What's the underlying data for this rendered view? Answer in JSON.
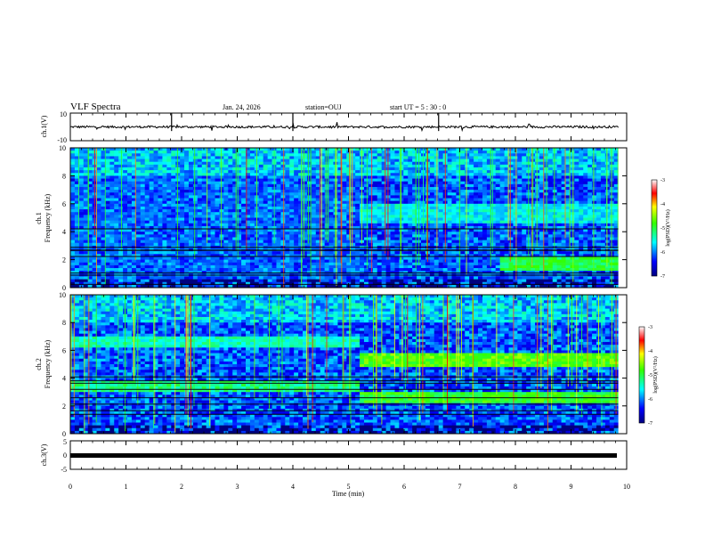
{
  "header": {
    "title": "VLF Spectra",
    "date": "Jan. 24, 2026",
    "station": "station=OUJ",
    "start": "start  UT =  5 : 30 : 0"
  },
  "colors": {
    "background": "#ffffff",
    "axis": "#000000",
    "waveform": "#000000"
  },
  "chart_data": [
    {
      "id": "ch1-waveform",
      "type": "line",
      "ylabel": "ch.1(V)",
      "ylim": [
        -10,
        10
      ],
      "yticks": [
        "10",
        "-10"
      ],
      "baseline": 0,
      "description_series": "noisy waveform centred near 0 V with occasional spikes"
    },
    {
      "id": "ch1-spectrogram",
      "type": "heatmap",
      "ylabel_lines": [
        "ch.1",
        "Frequency (kHz)"
      ],
      "ylim": [
        0,
        10
      ],
      "yticks": [
        "0",
        "2",
        "4",
        "6",
        "8",
        "10"
      ],
      "xlim": [
        0,
        9.85
      ],
      "colorbar": {
        "label": "log(PSD)(V²/Hz)",
        "ticks": [
          "-3",
          "-4",
          "-5",
          "-6",
          "-7"
        ],
        "range": [
          -7,
          -3
        ]
      },
      "features": [
        {
          "t_start": 0,
          "t_end": 5.2,
          "band_kHz": [
            0,
            10
          ],
          "level": -6.3
        },
        {
          "t_start": 5.2,
          "t_end": 9.85,
          "band_kHz": [
            4.6,
            6.0
          ],
          "level": -5.6
        },
        {
          "t_start": 7.7,
          "t_end": 9.85,
          "band_kHz": [
            1.3,
            2.2
          ],
          "level": -5.0
        }
      ]
    },
    {
      "id": "ch2-spectrogram",
      "type": "heatmap",
      "ylabel_lines": [
        "ch.2",
        "Frequency (kHz)"
      ],
      "ylim": [
        0,
        10
      ],
      "yticks": [
        "0",
        "2",
        "4",
        "6",
        "8",
        "10"
      ],
      "xlim": [
        0,
        9.85
      ],
      "colorbar": {
        "label": "log(PSD)(V²/Hz)",
        "ticks": [
          "-3",
          "-4",
          "-5",
          "-6",
          "-7"
        ],
        "range": [
          -7,
          -3
        ]
      },
      "features": [
        {
          "t_start": 0,
          "t_end": 5.2,
          "band_kHz": [
            3.0,
            3.8
          ],
          "level": -5.2
        },
        {
          "t_start": 0,
          "t_end": 5.2,
          "band_kHz": [
            6.3,
            7.0
          ],
          "level": -5.4
        },
        {
          "t_start": 5.2,
          "t_end": 9.85,
          "band_kHz": [
            4.8,
            5.8
          ],
          "level": -4.7
        },
        {
          "t_start": 5.2,
          "t_end": 9.85,
          "band_kHz": [
            2.2,
            3.0
          ],
          "level": -4.9
        }
      ]
    },
    {
      "id": "ch3-waveform",
      "type": "line",
      "ylabel": "ch.3(V)",
      "ylim": [
        -5,
        5
      ],
      "yticks": [
        "5",
        "0",
        "-5"
      ],
      "baseline": -1.5,
      "description_series": "flat line near -1.5 V"
    }
  ],
  "time_axis": {
    "xlabel": "Time (min)",
    "xlim": [
      0,
      10
    ],
    "ticks": [
      "0",
      "1",
      "2",
      "3",
      "4",
      "5",
      "6",
      "7",
      "8",
      "9",
      "10"
    ]
  }
}
